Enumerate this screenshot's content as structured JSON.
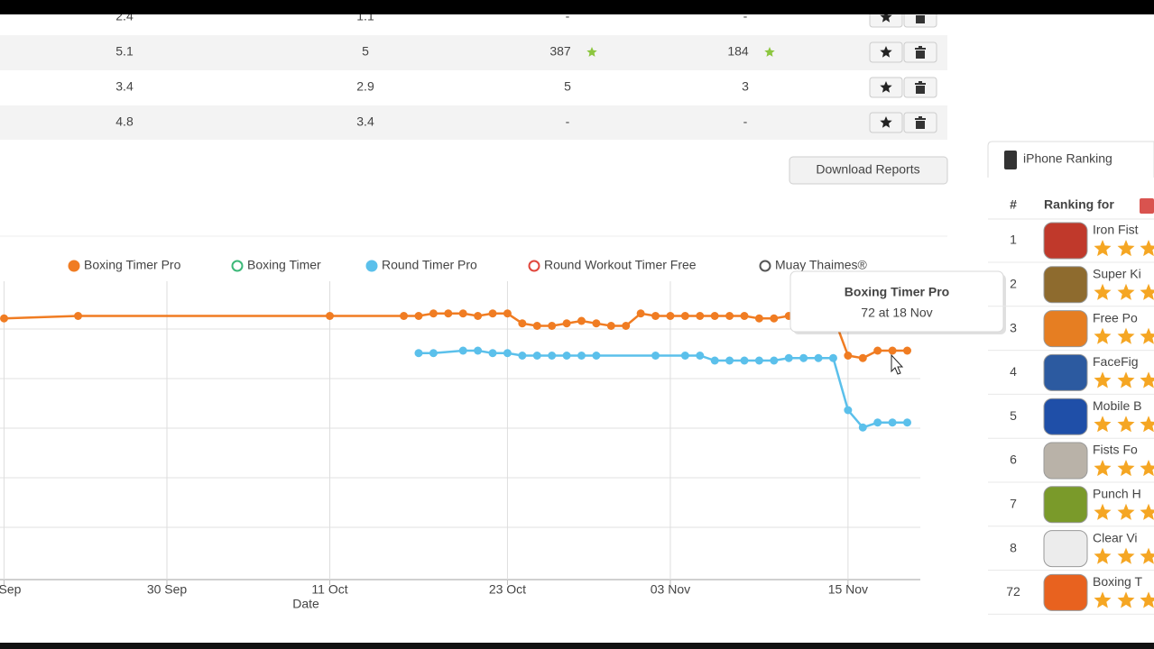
{
  "table": {
    "rows": [
      [
        2.4,
        1.1,
        "-",
        "-"
      ],
      [
        5.1,
        5,
        387,
        184
      ],
      [
        3.4,
        2.9,
        5,
        3
      ],
      [
        4.8,
        3.4,
        "-",
        "-"
      ]
    ]
  },
  "download_button": "Download Reports",
  "chart_data": {
    "type": "line",
    "x_label": "Date",
    "categories": [
      "Sep",
      null,
      null,
      null,
      null,
      null,
      null,
      null,
      null,
      null,
      null,
      "30 Sep",
      null,
      null,
      null,
      null,
      null,
      null,
      null,
      null,
      null,
      null,
      "11 Oct",
      null,
      null,
      null,
      null,
      null,
      null,
      null,
      null,
      null,
      null,
      null,
      "23 Oct",
      null,
      null,
      null,
      null,
      null,
      null,
      null,
      null,
      null,
      null,
      "03 Nov",
      null,
      null,
      null,
      null,
      null,
      null,
      null,
      null,
      null,
      null,
      null,
      "15 Nov",
      null,
      null,
      null,
      null,
      null
    ],
    "ylim": [
      44,
      164
    ],
    "y_inverted": true,
    "span_gaps": true,
    "series": [
      {
        "name": "Boxing Timer Pro",
        "color": "#f07c22",
        "visible": true,
        "values": [
          59,
          null,
          null,
          null,
          null,
          58,
          null,
          null,
          null,
          null,
          null,
          null,
          null,
          null,
          null,
          null,
          null,
          null,
          null,
          null,
          null,
          null,
          58,
          null,
          null,
          null,
          null,
          58,
          58,
          57,
          57,
          57,
          58,
          57,
          57,
          61,
          62,
          62,
          61,
          60,
          61,
          62,
          62,
          57,
          58,
          58,
          58,
          58,
          58,
          58,
          58,
          59,
          59,
          58,
          58,
          58,
          58,
          74,
          75,
          72,
          72,
          72,
          null
        ]
      },
      {
        "name": "Boxing Timer",
        "color": "#3cb878",
        "visible": false
      },
      {
        "name": "Round Timer Pro",
        "color": "#5bc0eb",
        "visible": true,
        "values": [
          null,
          null,
          null,
          null,
          null,
          null,
          null,
          null,
          null,
          null,
          null,
          null,
          null,
          null,
          null,
          null,
          null,
          null,
          null,
          null,
          null,
          null,
          null,
          null,
          null,
          null,
          null,
          null,
          73,
          73,
          null,
          72,
          72,
          73,
          73,
          74,
          74,
          74,
          74,
          74,
          74,
          null,
          null,
          null,
          74,
          null,
          74,
          74,
          76,
          76,
          76,
          76,
          76,
          75,
          75,
          75,
          75,
          96,
          103,
          101,
          101,
          101,
          null
        ]
      },
      {
        "name": "Round Workout Timer Free",
        "color": "#e0463c",
        "visible": false
      },
      {
        "name": "Muay Thaimes®",
        "color": "#555555",
        "visible": false
      }
    ],
    "tooltip": {
      "title": "Boxing Timer Pro",
      "label": "72 at 18 Nov"
    }
  },
  "sidebar": {
    "tab": "iPhone Ranking",
    "columns": [
      "#",
      "Ranking for"
    ],
    "rows": [
      {
        "rank": 1,
        "name": "Iron Fist"
      },
      {
        "rank": 2,
        "name": "Super Ki"
      },
      {
        "rank": 3,
        "name": "Free Po"
      },
      {
        "rank": 4,
        "name": "FaceFig"
      },
      {
        "rank": 5,
        "name": "Mobile B"
      },
      {
        "rank": 6,
        "name": "Fists Fo"
      },
      {
        "rank": 7,
        "name": "Punch H"
      },
      {
        "rank": 8,
        "name": "Clear Vi"
      },
      {
        "rank": 72,
        "name": "Boxing T"
      }
    ]
  }
}
